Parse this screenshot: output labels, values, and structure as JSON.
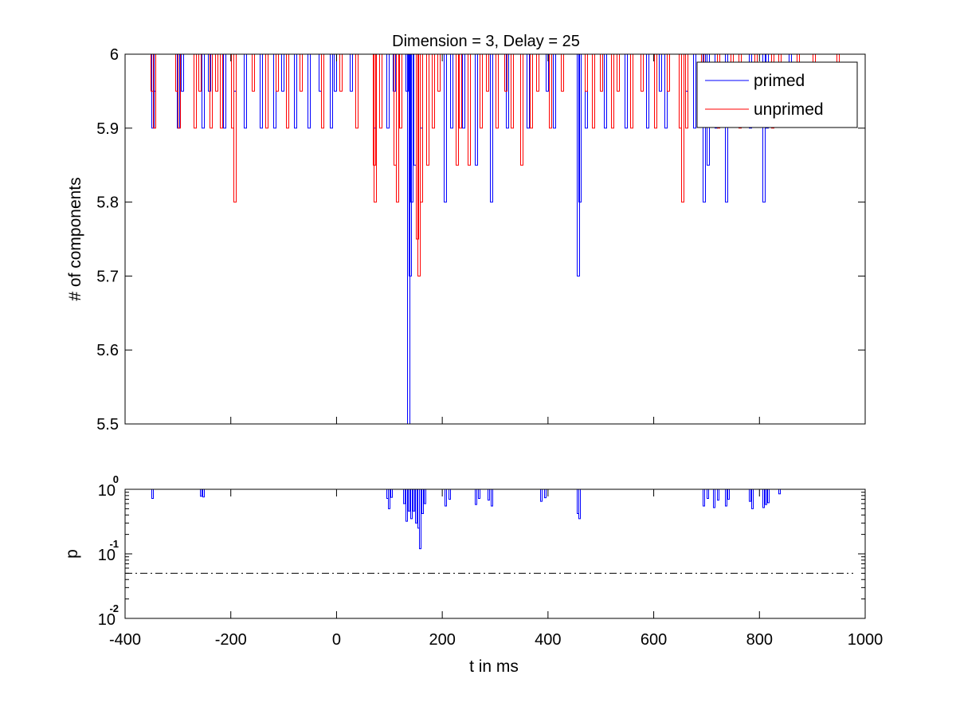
{
  "chart_data": [
    {
      "type": "line",
      "title": "Dimension  = 3, Delay = 25",
      "xlabel": "",
      "ylabel": "# of components",
      "xlim": [
        -400,
        1000
      ],
      "ylim": [
        5.5,
        6
      ],
      "ytick_labels": [
        "5.5",
        "5.6",
        "5.7",
        "5.8",
        "5.9",
        "6"
      ],
      "yticks": [
        5.5,
        5.6,
        5.7,
        5.8,
        5.9,
        6.0
      ],
      "legend": {
        "location": "top-right",
        "entries": [
          "primed",
          "unprimed"
        ]
      },
      "series": [
        {
          "name": "primed",
          "color": "#0000ff",
          "dips": [
            [
              -350,
              5.9
            ],
            [
              -347,
              5.95
            ],
            [
              -302,
              5.9
            ],
            [
              -294,
              5.95
            ],
            [
              -255,
              5.9
            ],
            [
              -243,
              5.95
            ],
            [
              -215,
              5.9
            ],
            [
              -195,
              5.95
            ],
            [
              -175,
              5.9
            ],
            [
              -145,
              5.9
            ],
            [
              -120,
              5.9
            ],
            [
              -105,
              5.95
            ],
            [
              -80,
              5.9
            ],
            [
              -55,
              5.9
            ],
            [
              -34,
              5.95
            ],
            [
              -12,
              5.9
            ],
            [
              -5,
              5.95
            ],
            [
              25,
              5.95
            ],
            [
              70,
              5.9
            ],
            [
              95,
              5.9
            ],
            [
              107,
              5.95
            ],
            [
              130,
              5.95
            ],
            [
              133,
              5.5
            ],
            [
              136,
              5.7
            ],
            [
              140,
              5.8
            ],
            [
              145,
              5.85
            ],
            [
              157,
              5.9
            ],
            [
              203,
              5.8
            ],
            [
              215,
              5.9
            ],
            [
              238,
              5.9
            ],
            [
              262,
              5.85
            ],
            [
              290,
              5.8
            ],
            [
              320,
              5.9
            ],
            [
              360,
              5.9
            ],
            [
              395,
              5.95
            ],
            [
              410,
              5.9
            ],
            [
              455,
              5.7
            ],
            [
              458,
              5.8
            ],
            [
              470,
              5.9
            ],
            [
              505,
              5.9
            ],
            [
              545,
              5.9
            ],
            [
              585,
              5.9
            ],
            [
              610,
              5.95
            ],
            [
              620,
              5.9
            ],
            [
              660,
              5.95
            ],
            [
              675,
              5.9
            ],
            [
              693,
              5.8
            ],
            [
              700,
              5.85
            ],
            [
              715,
              5.9
            ],
            [
              735,
              5.8
            ],
            [
              780,
              5.9
            ],
            [
              805,
              5.8
            ],
            [
              811,
              5.9
            ],
            [
              855,
              5.95
            ]
          ]
        },
        {
          "name": "unprimed",
          "color": "#ff0000",
          "dips": [
            [
              -352,
              5.95
            ],
            [
              -348,
              5.9
            ],
            [
              -305,
              5.95
            ],
            [
              -301,
              5.9
            ],
            [
              -270,
              5.9
            ],
            [
              -262,
              5.95
            ],
            [
              -240,
              5.9
            ],
            [
              -230,
              5.95
            ],
            [
              -220,
              5.9
            ],
            [
              -200,
              5.9
            ],
            [
              -195,
              5.8
            ],
            [
              -160,
              5.95
            ],
            [
              -135,
              5.9
            ],
            [
              -115,
              5.95
            ],
            [
              -95,
              5.9
            ],
            [
              -70,
              5.95
            ],
            [
              -30,
              5.9
            ],
            [
              5,
              5.95
            ],
            [
              35,
              5.9
            ],
            [
              68,
              5.85
            ],
            [
              70,
              5.8
            ],
            [
              80,
              5.9
            ],
            [
              108,
              5.85
            ],
            [
              112,
              5.8
            ],
            [
              118,
              5.9
            ],
            [
              150,
              5.75
            ],
            [
              153,
              5.7
            ],
            [
              157,
              5.8
            ],
            [
              170,
              5.85
            ],
            [
              180,
              5.9
            ],
            [
              190,
              5.95
            ],
            [
              225,
              5.85
            ],
            [
              232,
              5.9
            ],
            [
              248,
              5.85
            ],
            [
              270,
              5.9
            ],
            [
              282,
              5.95
            ],
            [
              300,
              5.9
            ],
            [
              318,
              5.95
            ],
            [
              330,
              5.9
            ],
            [
              348,
              5.85
            ],
            [
              365,
              5.9
            ],
            [
              378,
              5.95
            ],
            [
              402,
              5.9
            ],
            [
              425,
              5.95
            ],
            [
              470,
              5.95
            ],
            [
              483,
              5.9
            ],
            [
              498,
              5.95
            ],
            [
              520,
              5.9
            ],
            [
              530,
              5.95
            ],
            [
              555,
              5.9
            ],
            [
              575,
              5.95
            ],
            [
              600,
              5.9
            ],
            [
              625,
              5.95
            ],
            [
              648,
              5.9
            ],
            [
              652,
              5.8
            ],
            [
              660,
              5.9
            ],
            [
              690,
              5.95
            ],
            [
              720,
              5.9
            ],
            [
              745,
              5.95
            ],
            [
              760,
              5.9
            ],
            [
              790,
              5.95
            ],
            [
              822,
              5.9
            ],
            [
              835,
              5.95
            ],
            [
              870,
              5.95
            ],
            [
              900,
              5.95
            ],
            [
              945,
              5.95
            ]
          ]
        }
      ]
    },
    {
      "type": "line",
      "xlabel": "t in ms",
      "ylabel": "p",
      "xlim": [
        -400,
        1000
      ],
      "ylim": [
        0.01,
        1
      ],
      "yscale": "log",
      "xtick_labels": [
        "-400",
        "-200",
        "0",
        "200",
        "400",
        "600",
        "800",
        "1000"
      ],
      "xticks": [
        -400,
        -200,
        0,
        200,
        400,
        600,
        800,
        1000
      ],
      "ytick_labels": [
        {
          "base": "10",
          "exp": "0"
        },
        {
          "base": "10",
          "exp": "-1"
        },
        {
          "base": "10",
          "exp": "-2"
        }
      ],
      "yticks": [
        1,
        0.1,
        0.01
      ],
      "threshold": {
        "value": 0.05,
        "style": "dash-dot",
        "color": "#000000"
      },
      "series": [
        {
          "color": "#0000ff",
          "dips": [
            [
              -350,
              0.72
            ],
            [
              -258,
              0.78
            ],
            [
              -254,
              0.76
            ],
            [
              95,
              0.72
            ],
            [
              98,
              0.5
            ],
            [
              102,
              0.75
            ],
            [
              126,
              0.6
            ],
            [
              130,
              0.32
            ],
            [
              135,
              0.46
            ],
            [
              140,
              0.35
            ],
            [
              144,
              0.46
            ],
            [
              148,
              0.3
            ],
            [
              153,
              0.25
            ],
            [
              156,
              0.12
            ],
            [
              160,
              0.42
            ],
            [
              165,
              0.6
            ],
            [
              205,
              0.55
            ],
            [
              212,
              0.7
            ],
            [
              262,
              0.58
            ],
            [
              268,
              0.72
            ],
            [
              285,
              0.68
            ],
            [
              292,
              0.55
            ],
            [
              385,
              0.65
            ],
            [
              392,
              0.74
            ],
            [
              455,
              0.42
            ],
            [
              458,
              0.35
            ],
            [
              693,
              0.55
            ],
            [
              700,
              0.72
            ],
            [
              712,
              0.52
            ],
            [
              720,
              0.68
            ],
            [
              735,
              0.55
            ],
            [
              740,
              0.7
            ],
            [
              780,
              0.65
            ],
            [
              785,
              0.5
            ],
            [
              805,
              0.52
            ],
            [
              810,
              0.58
            ],
            [
              815,
              0.62
            ],
            [
              835,
              0.85
            ]
          ]
        }
      ]
    }
  ]
}
